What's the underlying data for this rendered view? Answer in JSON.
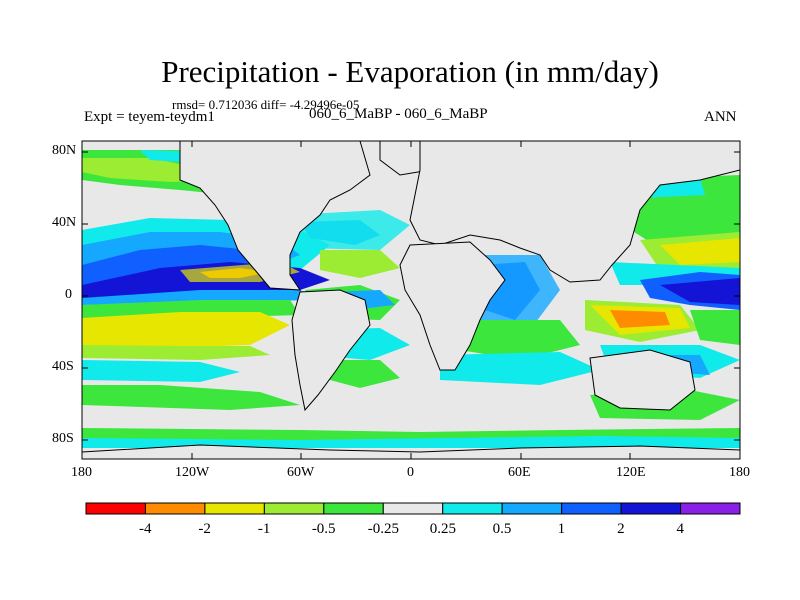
{
  "title": "Precipitation - Evaporation (in mm/day)",
  "stats": "rmsd= 0.712036  diff= -4.29496e-05",
  "expt_label": "Expt = teyem-teydm1",
  "cases": "060_6_MaBP - 060_6_MaBP",
  "season": "ANN",
  "lat_labels": [
    "80N",
    "40N",
    "0",
    "40S",
    "80S"
  ],
  "lon_labels": [
    "180",
    "120W",
    "60W",
    "0",
    "60E",
    "120E",
    "180"
  ],
  "colorbar": {
    "labels": [
      "-4",
      "-2",
      "-1",
      "-0.5",
      "-0.25",
      "0.25",
      "0.5",
      "1",
      "2",
      "4"
    ],
    "colors": [
      "#ff0000",
      "#ff8c00",
      "#e6e600",
      "#9bec32",
      "#3de63d",
      "#e8e8e8",
      "#11eaea",
      "#14a8ff",
      "#1060ff",
      "#1414d6",
      "#8820e8"
    ]
  },
  "colors": {
    "land": "#e8e8e8",
    "coastline": "#000000"
  }
}
